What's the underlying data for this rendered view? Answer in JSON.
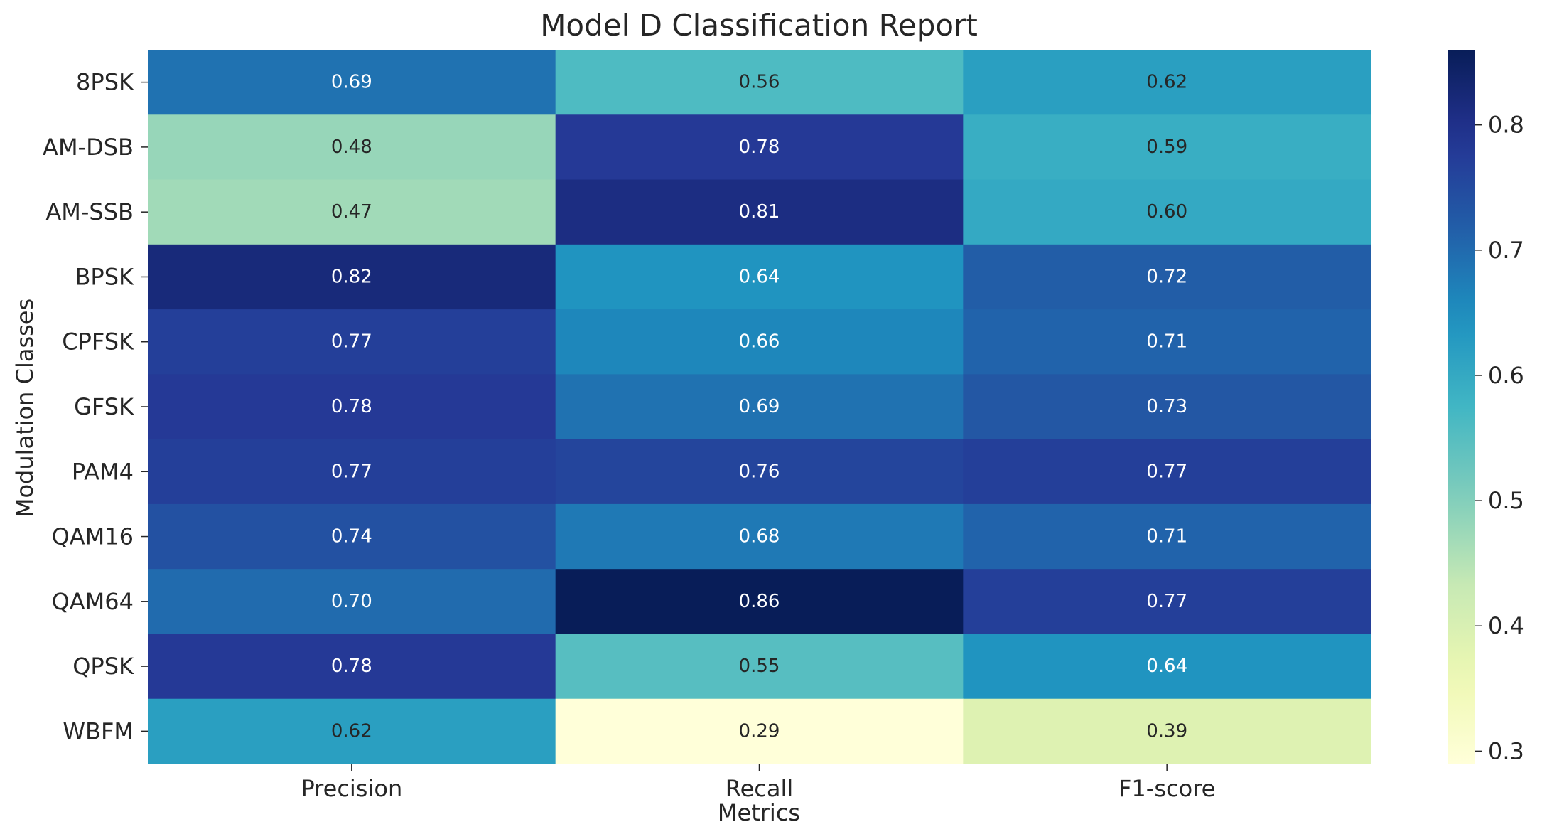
{
  "chart_data": {
    "type": "heatmap",
    "title": "Model D Classification Report",
    "xlabel": "Metrics",
    "ylabel": "Modulation Classes",
    "columns": [
      "Precision",
      "Recall",
      "F1-score"
    ],
    "rows": [
      "8PSK",
      "AM-DSB",
      "AM-SSB",
      "BPSK",
      "CPFSK",
      "GFSK",
      "PAM4",
      "QAM16",
      "QAM64",
      "QPSK",
      "WBFM"
    ],
    "values": [
      [
        0.69,
        0.56,
        0.62
      ],
      [
        0.48,
        0.78,
        0.59
      ],
      [
        0.47,
        0.81,
        0.6
      ],
      [
        0.82,
        0.64,
        0.72
      ],
      [
        0.77,
        0.66,
        0.71
      ],
      [
        0.78,
        0.69,
        0.73
      ],
      [
        0.77,
        0.76,
        0.77
      ],
      [
        0.74,
        0.68,
        0.71
      ],
      [
        0.7,
        0.86,
        0.77
      ],
      [
        0.78,
        0.55,
        0.64
      ],
      [
        0.62,
        0.29,
        0.39
      ]
    ],
    "value_format": "2 decimals",
    "colormap": "YlGnBu",
    "vmin": 0.29,
    "vmax": 0.86,
    "colorbar_ticks": [
      0.3,
      0.4,
      0.5,
      0.6,
      0.7,
      0.8
    ],
    "colorbar_tick_labels": [
      "0.3",
      "0.4",
      "0.5",
      "0.6",
      "0.7",
      "0.8"
    ],
    "grid": false
  }
}
